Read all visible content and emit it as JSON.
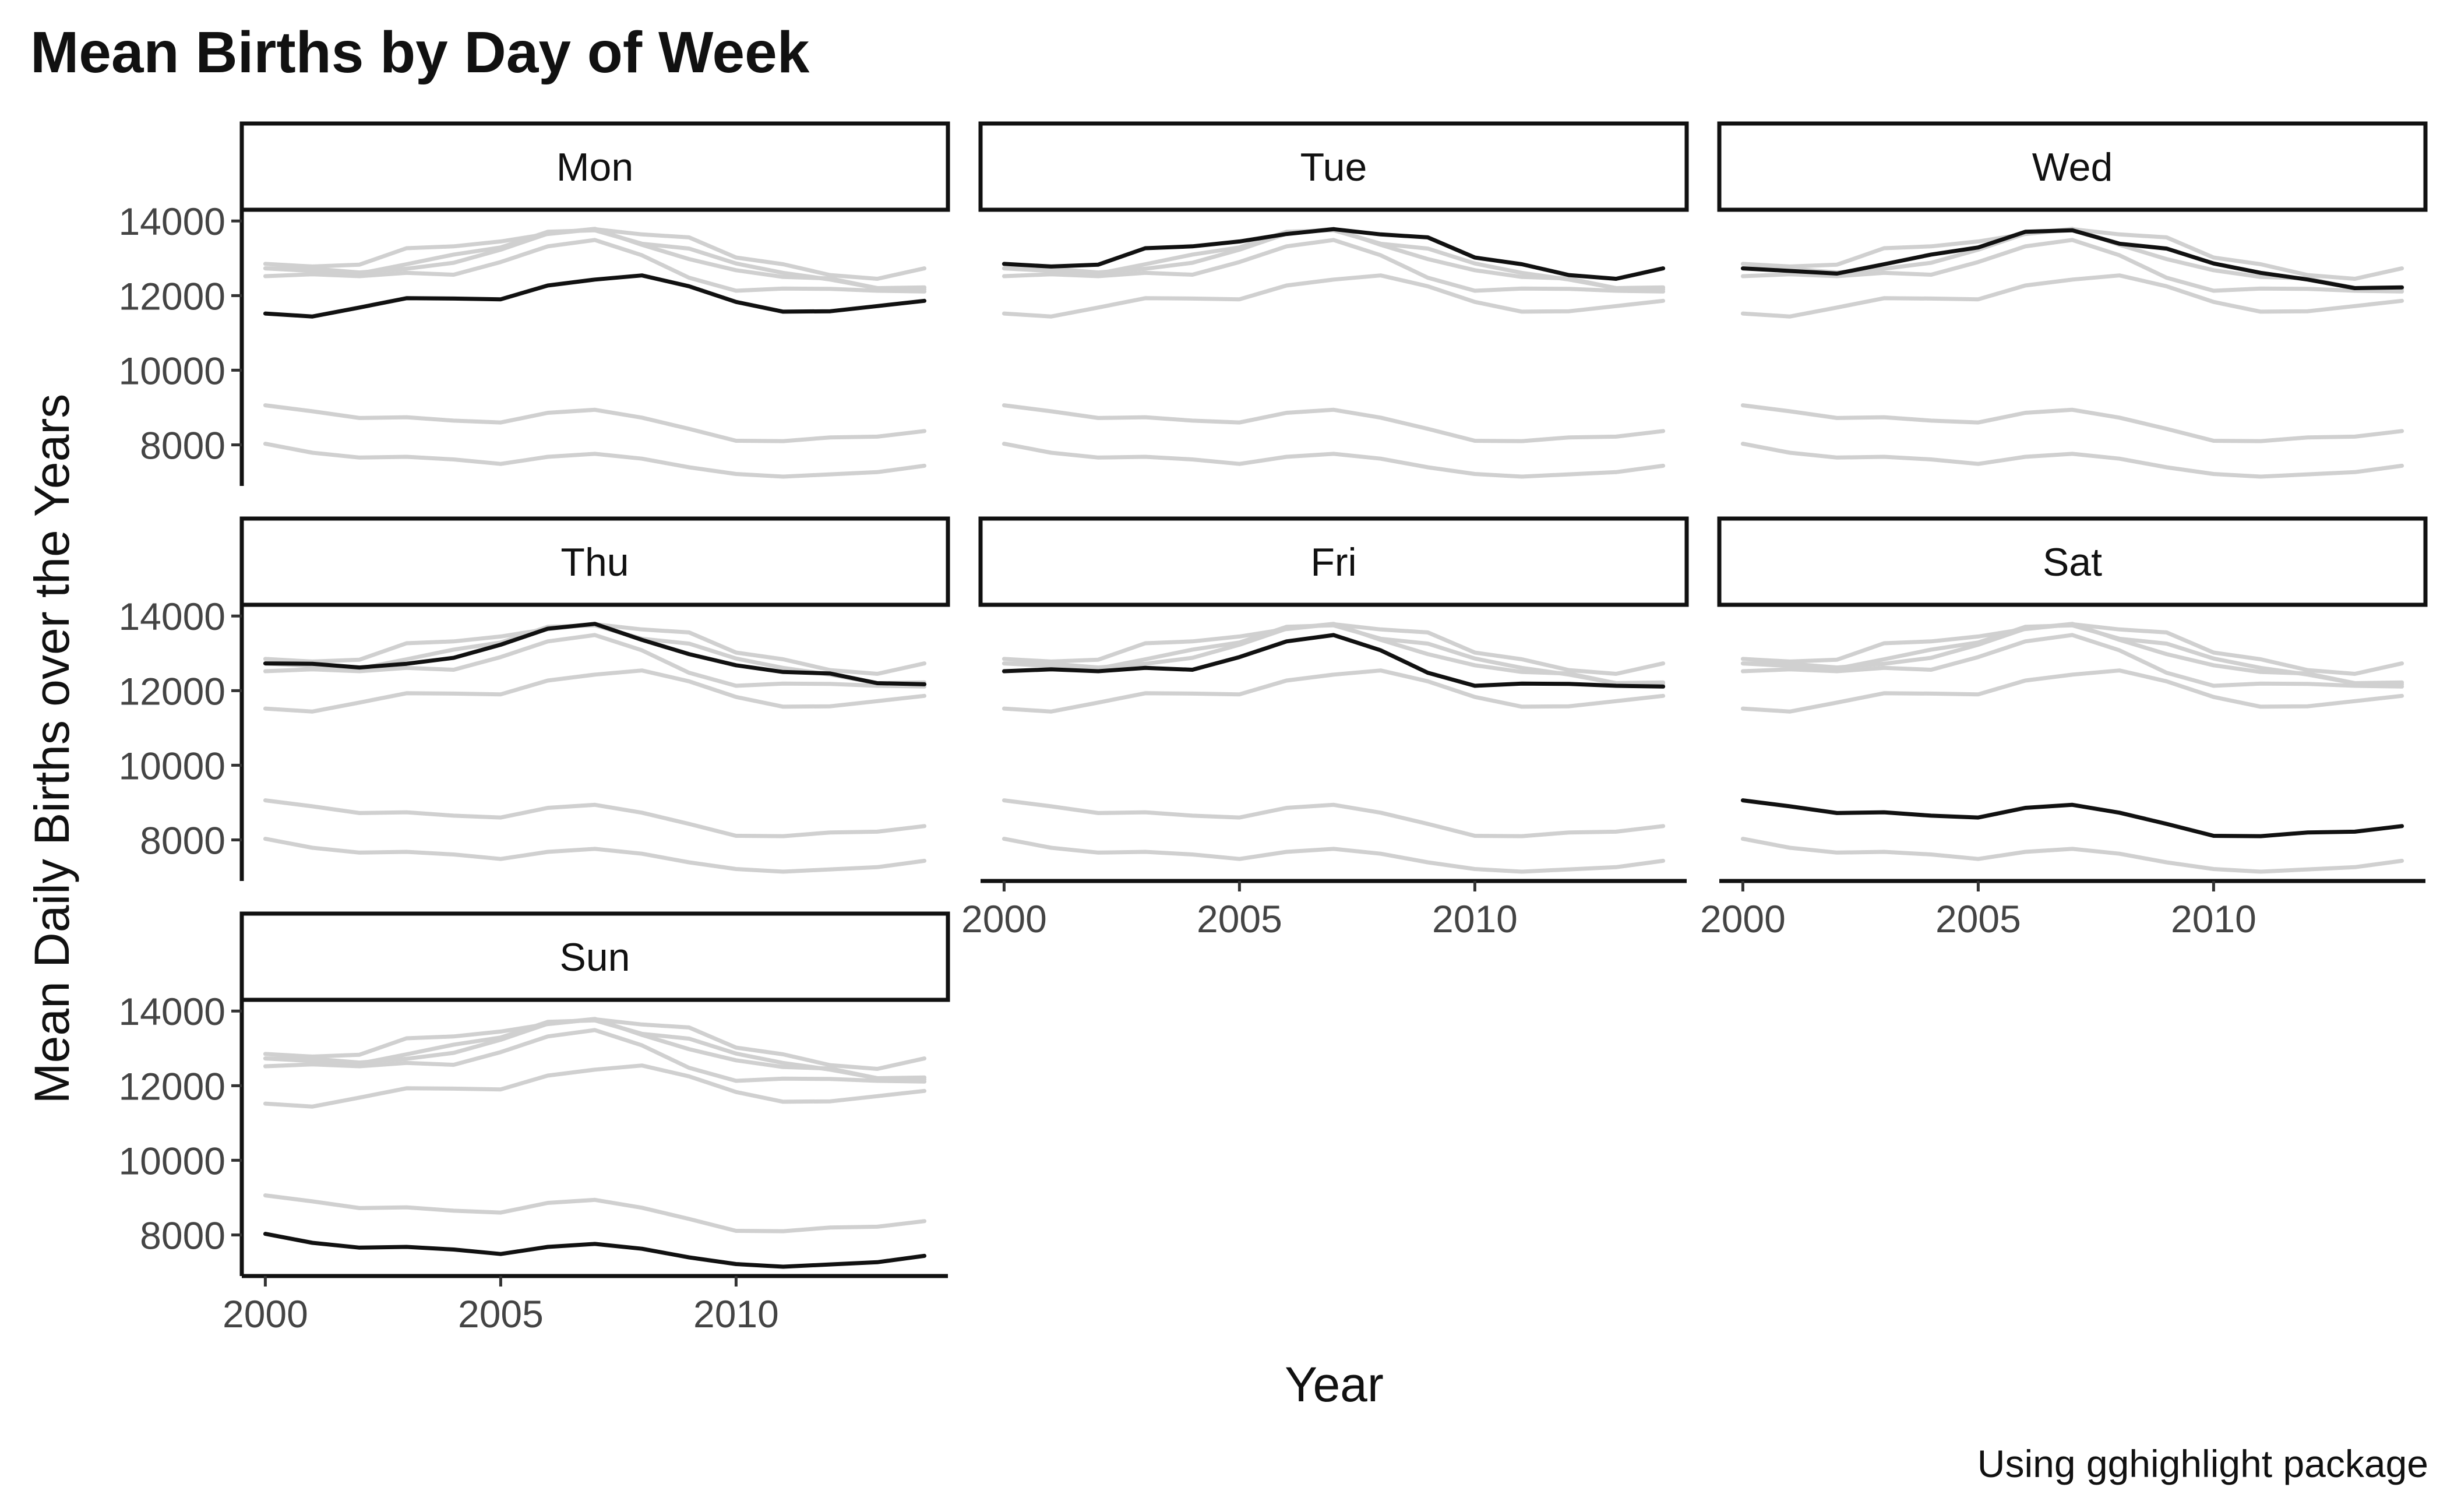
{
  "chart_data": {
    "type": "line",
    "title": "Mean Births by Day of Week",
    "xlabel": "Year",
    "ylabel": "Mean Daily Births over the Years",
    "caption": "Using gghighlight package",
    "xlim": [
      1999.5,
      2014.5
    ],
    "ylim": [
      6900,
      14300
    ],
    "x_ticks": [
      2000,
      2005,
      2010
    ],
    "y_ticks": [
      8000,
      10000,
      12000,
      14000
    ],
    "facet_layout": "3 columns",
    "highlight_color": "#111111",
    "background_series_color": "#d0d0d0",
    "grid": false,
    "x": [
      2000,
      2001,
      2002,
      2003,
      2004,
      2005,
      2006,
      2007,
      2008,
      2009,
      2010,
      2011,
      2012,
      2013,
      2014
    ],
    "series": [
      {
        "name": "Mon",
        "values": [
          11520,
          11440,
          11680,
          11930,
          11920,
          11900,
          12270,
          12430,
          12540,
          12250,
          11830,
          11570,
          11580,
          11720,
          11860
        ]
      },
      {
        "name": "Tue",
        "values": [
          12850,
          12780,
          12830,
          13270,
          13320,
          13450,
          13650,
          13780,
          13640,
          13560,
          13020,
          12840,
          12550,
          12450,
          12730
        ]
      },
      {
        "name": "Wed",
        "values": [
          12730,
          12660,
          12590,
          12840,
          13100,
          13290,
          13710,
          13750,
          13390,
          13260,
          12860,
          12610,
          12430,
          12200,
          12220
        ]
      },
      {
        "name": "Thu",
        "values": [
          12730,
          12720,
          12620,
          12720,
          12880,
          13230,
          13660,
          13790,
          13360,
          12980,
          12680,
          12500,
          12460,
          12200,
          12170
        ]
      },
      {
        "name": "Fri",
        "values": [
          12520,
          12570,
          12520,
          12610,
          12560,
          12900,
          13320,
          13490,
          13080,
          12480,
          12130,
          12190,
          12180,
          12130,
          12110
        ]
      },
      {
        "name": "Sat",
        "values": [
          9060,
          8900,
          8720,
          8740,
          8650,
          8600,
          8860,
          8940,
          8730,
          8430,
          8110,
          8100,
          8200,
          8220,
          8370
        ]
      },
      {
        "name": "Sun",
        "values": [
          8030,
          7790,
          7660,
          7680,
          7610,
          7490,
          7680,
          7760,
          7630,
          7400,
          7220,
          7150,
          7210,
          7270,
          7440
        ]
      }
    ]
  }
}
